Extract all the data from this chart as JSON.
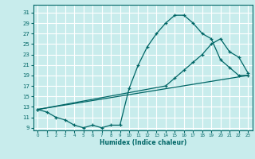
{
  "xlabel": "Humidex (Indice chaleur)",
  "bg_color": "#c8ecec",
  "grid_color": "#ffffff",
  "line_color": "#006666",
  "ylim": [
    8.5,
    32.5
  ],
  "xlim": [
    -0.5,
    23.5
  ],
  "yticks": [
    9,
    11,
    13,
    15,
    17,
    19,
    21,
    23,
    25,
    27,
    29,
    31
  ],
  "xticks": [
    0,
    1,
    2,
    3,
    4,
    5,
    6,
    7,
    8,
    9,
    10,
    11,
    12,
    13,
    14,
    15,
    16,
    17,
    18,
    19,
    20,
    21,
    22,
    23
  ],
  "curve1_x": [
    0,
    1,
    2,
    3,
    4,
    5,
    6,
    7,
    8,
    9,
    10,
    11,
    12,
    13,
    14,
    15,
    16,
    17,
    18,
    19,
    20,
    21,
    22,
    23
  ],
  "curve1_y": [
    12.5,
    12.0,
    11.0,
    10.5,
    9.5,
    9.0,
    9.5,
    9.0,
    9.5,
    9.5,
    16.5,
    21.0,
    24.5,
    27.0,
    29.0,
    30.5,
    30.5,
    29.0,
    27.0,
    26.0,
    22.0,
    20.5,
    19.0,
    19.0
  ],
  "curve2_x": [
    0,
    23
  ],
  "curve2_y": [
    12.5,
    19.0
  ],
  "curve3_x": [
    0,
    14,
    15,
    16,
    17,
    18,
    19,
    20,
    21,
    22,
    23
  ],
  "curve3_y": [
    12.5,
    17.0,
    18.5,
    20.0,
    21.5,
    23.0,
    25.0,
    26.0,
    23.5,
    22.5,
    19.5
  ]
}
